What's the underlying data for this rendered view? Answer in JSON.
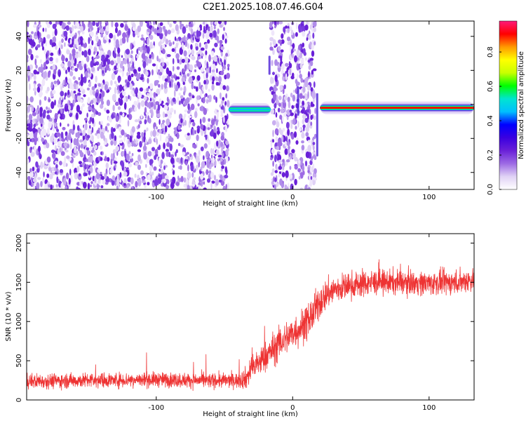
{
  "title": "C2E1.2025.108.07.46.G04",
  "chart_data": [
    {
      "type": "heatmap",
      "xlabel": "Height of straight line (km)",
      "ylabel": "Frequency (Hz)",
      "xlim": [
        -195,
        133
      ],
      "ylim": [
        -50,
        49
      ],
      "xticks": [
        -100,
        0,
        100
      ],
      "yticks": [
        -40,
        -20,
        0,
        20,
        40
      ],
      "colorbar": {
        "label": "Normalized spectral amplitude",
        "range": [
          0.0,
          0.98
        ],
        "ticks": [
          0.0,
          0.2,
          0.4,
          0.6,
          0.8
        ],
        "tick_labels": [
          "0.0",
          "0.2",
          "0.4",
          "0.6",
          "0.8"
        ],
        "colormap": [
          "#ffffff",
          "#e0d2f5",
          "#9d6ae4",
          "#6a20d8",
          "#3a00e0",
          "#0000ff",
          "#00bfff",
          "#00e5d0",
          "#00ff00",
          "#c8ff00",
          "#ffff00",
          "#ff9900",
          "#ff0000",
          "#ff1a7a"
        ]
      },
      "regions": [
        {
          "x_range": [
            -195,
            -47
          ],
          "description": "broadband noise",
          "amplitude": 0.15
        },
        {
          "x_range": [
            -47,
            -16
          ],
          "frequency_hz": -3,
          "amplitude": 0.45
        },
        {
          "x_range": [
            -16,
            17
          ],
          "description": "broadband noise",
          "amplitude": 0.15
        },
        {
          "x_range": [
            20,
            133
          ],
          "frequency_hz": -2,
          "amplitude": 0.9
        }
      ],
      "grid": false
    },
    {
      "type": "line",
      "xlabel": "Height of straight line (km)",
      "ylabel": "SNR (10 * v/v)",
      "xlim": [
        -195,
        133
      ],
      "ylim": [
        0,
        2120
      ],
      "xticks": [
        -100,
        0,
        100
      ],
      "yticks": [
        0,
        500,
        1000,
        1500,
        2000
      ],
      "color": "#ee3333",
      "grid": false,
      "series": [
        {
          "x": [
            -195,
            -150,
            -100,
            -60,
            -40,
            -34,
            -30,
            -20,
            -10,
            0,
            10,
            15,
            20,
            25,
            30,
            40,
            50,
            60,
            80,
            100,
            120,
            133
          ],
          "mean": [
            240,
            250,
            260,
            245,
            250,
            280,
            400,
            550,
            720,
            850,
            980,
            1100,
            1250,
            1350,
            1400,
            1450,
            1480,
            1500,
            1500,
            1490,
            1500,
            1540
          ],
          "noise_amplitude": [
            110,
            110,
            110,
            110,
            110,
            170,
            200,
            230,
            250,
            260,
            270,
            270,
            250,
            230,
            220,
            200,
            200,
            190,
            180,
            180,
            180,
            180
          ]
        }
      ]
    }
  ]
}
